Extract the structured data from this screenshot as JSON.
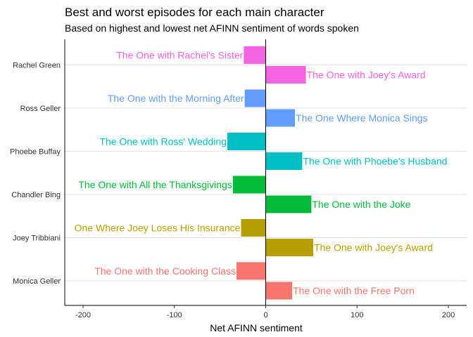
{
  "chart_data": {
    "type": "bar",
    "orientation": "horizontal",
    "title": "Best and worst episodes for each main character",
    "subtitle": "Based on highest and lowest net AFINN sentiment of words spoken",
    "xlabel": "Net AFINN sentiment",
    "ylabel": "",
    "xlim": [
      -220,
      220
    ],
    "xticks": [
      -200,
      -100,
      0,
      100,
      200
    ],
    "xtick_labels": [
      "-200",
      "-100",
      "0",
      "100",
      "200"
    ],
    "grid": "horizontal-major",
    "legend": "none",
    "categories": [
      "Rachel Green",
      "Ross Geller",
      "Phoebe Buffay",
      "Chandler Bing",
      "Joey Tribbiani",
      "Monica Geller"
    ],
    "groups": [
      {
        "character": "Rachel Green",
        "color": "#f564e3",
        "worst": {
          "episode": "The One with Rachel's Sister",
          "value": -24
        },
        "best": {
          "episode": "The One with Joey's Award",
          "value": 44
        }
      },
      {
        "character": "Ross Geller",
        "color": "#619cff",
        "worst": {
          "episode": "The One with the Morning After",
          "value": -23
        },
        "best": {
          "episode": "The One Where Monica Sings",
          "value": 32
        }
      },
      {
        "character": "Phoebe Buffay",
        "color": "#00bfc4",
        "worst": {
          "episode": "The One with Ross' Wedding",
          "value": -42
        },
        "best": {
          "episode": "The One with Phoebe's Husband",
          "value": 40
        }
      },
      {
        "character": "Chandler Bing",
        "color": "#00ba38",
        "worst": {
          "episode": "The One with All the Thanksgivings",
          "value": -36
        },
        "best": {
          "episode": "The One with the Joke",
          "value": 50
        }
      },
      {
        "character": "Joey Tribbiani",
        "color": "#b79f00",
        "worst": {
          "episode": "One Where Joey Loses His Insurance",
          "value": -27
        },
        "best": {
          "episode": "The One with Joey's Award",
          "value": 52
        }
      },
      {
        "character": "Monica Geller",
        "color": "#f8766d",
        "worst": {
          "episode": "The One with the Cooking Class",
          "value": -32
        },
        "best": {
          "episode": "The One with the Free Porn",
          "value": 29
        }
      }
    ]
  }
}
